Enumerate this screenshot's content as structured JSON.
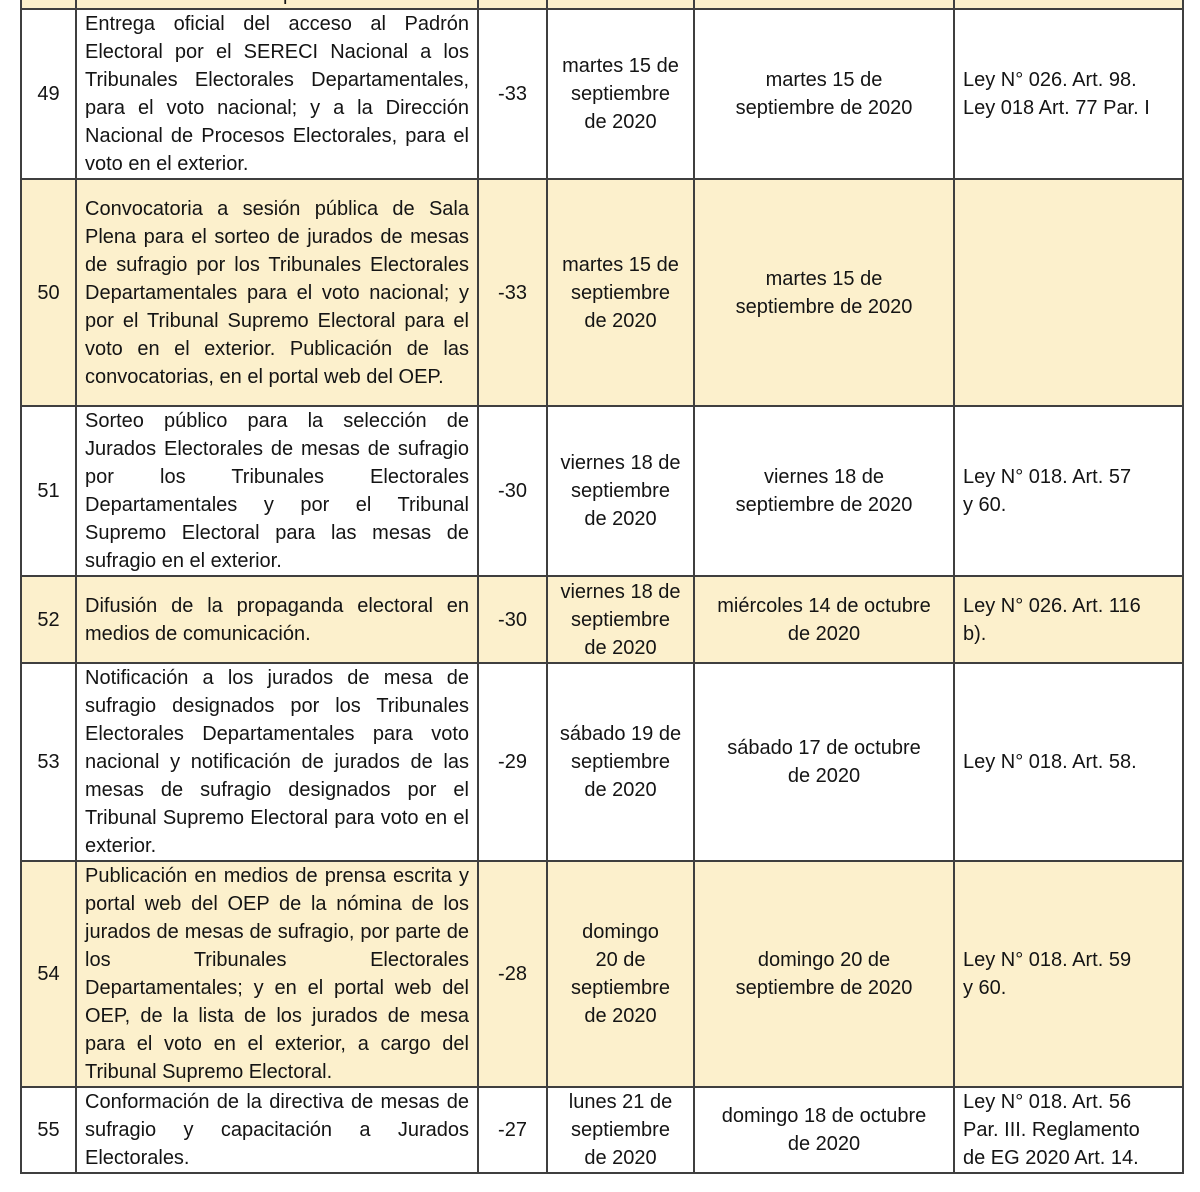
{
  "colors": {
    "row_shade": "#fcf0cc",
    "border": "#3f3f3f",
    "text": "#141414",
    "background": "#ffffff"
  },
  "partial_row": {
    "fragment": "p"
  },
  "rows": [
    {
      "num": "49",
      "activity": "Entrega oficial del acceso al Padrón Electoral por el SERECI Nacional a los Tribunales Electorales Departamentales, para el voto nacional; y a la Dirección Nacional de Procesos Electorales, para el voto en el exterior.",
      "days": "-33",
      "date1": "martes 15 de\nseptiembre\nde 2020",
      "date2": "martes 15 de\nseptiembre de 2020",
      "legal": "Ley N° 026. Art. 98.\nLey 018 Art. 77 Par. I",
      "shaded": false
    },
    {
      "num": "50",
      "activity": "Convocatoria a sesión pública de Sala Plena para el sorteo de jurados de mesas de sufragio por los Tribunales Electorales Departamentales para el voto nacional; y por el Tribunal Supremo Electoral para el voto en el exterior. Publicación de las convocatorias, en el portal web del OEP.",
      "days": "-33",
      "date1": "martes 15 de\nseptiembre\nde 2020",
      "date2": "martes 15 de\nseptiembre de 2020",
      "legal": "",
      "shaded": true
    },
    {
      "num": "51",
      "activity": "Sorteo público para la selección de Jurados Electorales de mesas de sufragio por los Tribunales Electorales Departamentales y por el Tribunal Supremo Electoral para las mesas de sufragio en el exterior.",
      "days": "-30",
      "date1": "viernes 18 de\nseptiembre\nde 2020",
      "date2": "viernes 18 de\nseptiembre de 2020",
      "legal": "Ley N° 018. Art. 57\ny 60.",
      "shaded": false
    },
    {
      "num": "52",
      "activity": "Difusión de la propaganda electoral en medios de comunicación.",
      "days": "-30",
      "date1": "viernes 18 de\nseptiembre\nde 2020",
      "date2": "miércoles 14 de octubre\nde 2020",
      "legal": "Ley N° 026. Art. 116\nb).",
      "shaded": true
    },
    {
      "num": "53",
      "activity": "Notificación a los jurados de mesa de sufragio designados por los Tribunales Electorales Departamentales para voto nacional y notificación de jurados de las mesas de sufragio designados por el Tribunal Supremo Electoral para voto en el exterior.",
      "days": "-29",
      "date1": "sábado 19 de\nseptiembre\nde 2020",
      "date2": "sábado 17 de octubre\nde 2020",
      "legal": "Ley N° 018. Art. 58.",
      "shaded": false
    },
    {
      "num": "54",
      "activity": "Publicación en medios de prensa escrita y portal web del OEP de la nómina de los jurados de mesas de sufragio, por parte de los Tribunales Electorales Departamentales; y en el portal web del OEP, de la lista de los jurados de mesa para el voto en el exterior, a cargo del Tribunal Supremo Electoral.",
      "days": "-28",
      "date1": "domingo\n20 de\nseptiembre\nde 2020",
      "date2": "domingo 20 de\nseptiembre de 2020",
      "legal": "Ley N° 018. Art. 59\ny 60.",
      "shaded": true
    },
    {
      "num": "55",
      "activity": "Conformación de la directiva de mesas de sufragio y capacitación a Jurados Electorales.",
      "days": "-27",
      "date1": "lunes 21 de\nseptiembre\nde 2020",
      "date2": "domingo 18 de octubre\nde 2020",
      "legal": "Ley N° 018. Art. 56\nPar. III. Reglamento\nde EG 2020 Art. 14.",
      "shaded": false
    }
  ]
}
